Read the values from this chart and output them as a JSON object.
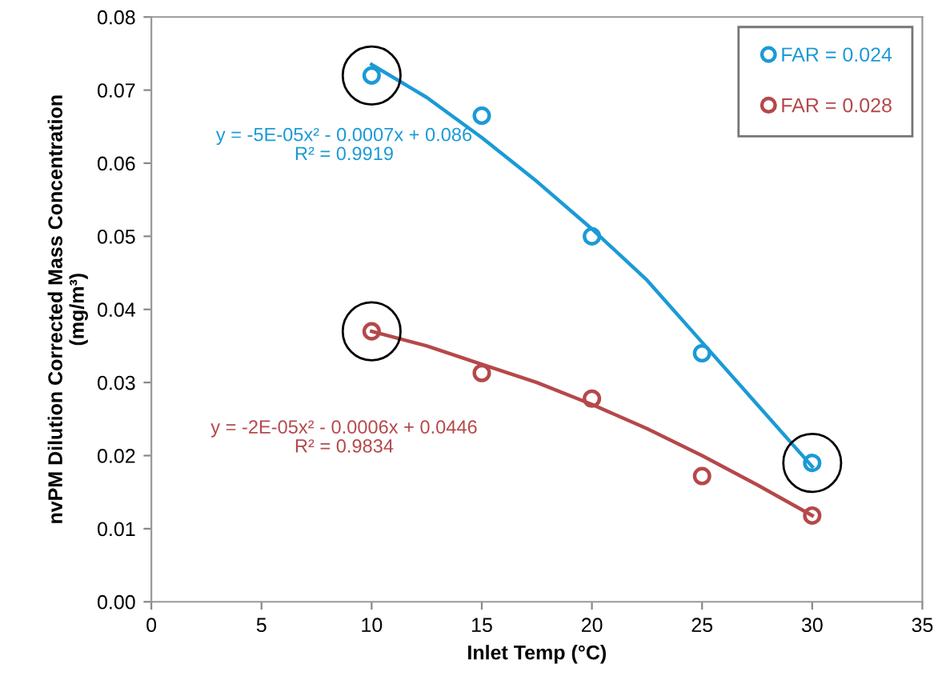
{
  "chart_data": {
    "type": "scatter",
    "xlabel": "Inlet Temp (°C)",
    "ylabel": "nvPM Dilution Corrected Mass Concentration\n(mg/m³)",
    "xlim": [
      0,
      35
    ],
    "xticks": [
      0,
      5,
      10,
      15,
      20,
      25,
      30,
      35
    ],
    "ylim": [
      0,
      0.08
    ],
    "yticks": [
      {
        "value": 0,
        "label": "0.00"
      },
      {
        "value": 0.01,
        "label": "0.01"
      },
      {
        "value": 0.02,
        "label": "0.02"
      },
      {
        "value": 0.03,
        "label": "0.03"
      },
      {
        "value": 0.04,
        "label": "0.04"
      },
      {
        "value": 0.05,
        "label": "0.05"
      },
      {
        "value": 0.06,
        "label": "0.06"
      },
      {
        "value": 0.07,
        "label": "0.07"
      },
      {
        "value": 0.08,
        "label": "0.08"
      }
    ],
    "x": [
      10,
      15,
      20,
      25,
      30
    ],
    "marker": "circle",
    "legend": "top right",
    "grid": false,
    "series": [
      {
        "name": "FAR = 0.024",
        "color": "#1b9ad6",
        "values": [
          0.072,
          0.0665,
          0.05,
          0.034,
          0.019
        ]
      },
      {
        "name": "FAR = 0.028",
        "color": "#b5484a",
        "values": [
          0.037,
          0.0313,
          0.0278,
          0.0172,
          0.0118
        ]
      },
      {
        "type": "line",
        "marker": "none",
        "color": "#1b9ad6",
        "x": [
          10,
          12.5,
          15,
          17.5,
          20,
          22.5,
          25,
          27.5,
          30
        ],
        "values": [
          0.0735,
          0.069,
          0.0635,
          0.0575,
          0.051,
          0.044,
          0.0355,
          0.027,
          0.0185
        ]
      },
      {
        "type": "line",
        "marker": "none",
        "color": "#b5484a",
        "x": [
          10,
          12.5,
          15,
          17.5,
          20,
          22.5,
          25,
          27.5,
          30
        ],
        "values": [
          0.037,
          0.035,
          0.0325,
          0.03,
          0.027,
          0.0237,
          0.02,
          0.016,
          0.0118
        ]
      }
    ],
    "annotations": [
      "y = -5E-05x² - 0.0007x + 0.086\nR² = 0.9919",
      "y = -2E-05x² - 0.0006x + 0.0446\nR² = 0.9834"
    ]
  }
}
